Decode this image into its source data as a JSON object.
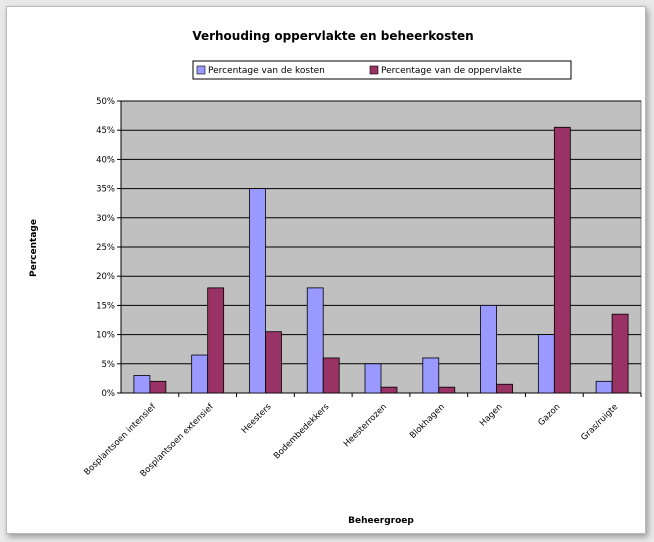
{
  "chart_data": {
    "type": "bar",
    "title": "Verhouding oppervlakte en beheerkosten",
    "xlabel": "Beheergroep",
    "ylabel": "Percentage",
    "categories": [
      "Bosplantsoen intensief",
      "Bosplantsoen extensief",
      "Heesters",
      "Bodembedekkers",
      "Heesterrozen",
      "Blokhagen",
      "Hagen",
      "Gazon",
      "Gras/ruigte"
    ],
    "series": [
      {
        "name": "Percentage van de kosten",
        "color": "#9999ff",
        "values": [
          3,
          6.5,
          35,
          18,
          5,
          6,
          15,
          10,
          2
        ]
      },
      {
        "name": "Percentage van de oppervlakte",
        "color": "#993366",
        "values": [
          2,
          18,
          10.5,
          6,
          1,
          1,
          1.5,
          45.5,
          13.5
        ]
      }
    ],
    "ylim": [
      0,
      50
    ],
    "yticks": [
      "0%",
      "5%",
      "10%",
      "15%",
      "20%",
      "25%",
      "30%",
      "35%",
      "40%",
      "45%",
      "50%"
    ],
    "plot_background": "#c0c0c0",
    "grid": true,
    "legend_position": "top"
  }
}
